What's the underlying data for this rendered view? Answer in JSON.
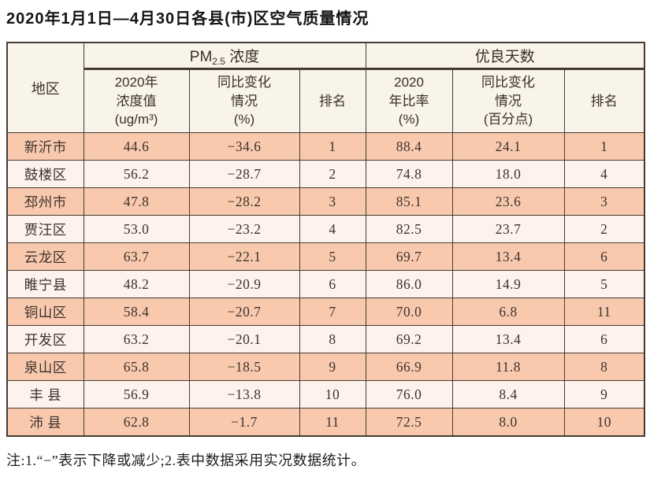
{
  "title": "2020年1月1日—4月30日各县(市)区空气质量情况",
  "note": "注:1.“−”表示下降或减少;2.表中数据采用实况数据统计。",
  "colors": {
    "row_odd_bg": "#f9c9ae",
    "row_even_bg": "#fdf2ec",
    "header_bg": "#f9f4ea",
    "border": "#453b33",
    "text": "#3c332d"
  },
  "table": {
    "group_headers": {
      "region": "地区",
      "pm25_pm": "PM",
      "pm25_sub": "2.5",
      "pm25_word": " 浓度",
      "good_days": "优良天数"
    },
    "sub_headers": {
      "pm25_value": "2020年\n浓度值\n(ug/m³)",
      "pm25_change": "同比变化\n情况\n(%)",
      "pm25_rank": "排名",
      "good_ratio": "2020\n年比率\n(%)",
      "good_change": "同比变化\n情况\n(百分点)",
      "good_rank": "排名"
    },
    "rows": [
      {
        "region": "新沂市",
        "pm25_value": "44.6",
        "pm25_change": "−34.6",
        "pm25_rank": "1",
        "good_ratio": "88.4",
        "good_change": "24.1",
        "good_rank": "1"
      },
      {
        "region": "鼓楼区",
        "pm25_value": "56.2",
        "pm25_change": "−28.7",
        "pm25_rank": "2",
        "good_ratio": "74.8",
        "good_change": "18.0",
        "good_rank": "4"
      },
      {
        "region": "邳州市",
        "pm25_value": "47.8",
        "pm25_change": "−28.2",
        "pm25_rank": "3",
        "good_ratio": "85.1",
        "good_change": "23.6",
        "good_rank": "3"
      },
      {
        "region": "贾汪区",
        "pm25_value": "53.0",
        "pm25_change": "−23.2",
        "pm25_rank": "4",
        "good_ratio": "82.5",
        "good_change": "23.7",
        "good_rank": "2"
      },
      {
        "region": "云龙区",
        "pm25_value": "63.7",
        "pm25_change": "−22.1",
        "pm25_rank": "5",
        "good_ratio": "69.7",
        "good_change": "13.4",
        "good_rank": "6"
      },
      {
        "region": "睢宁县",
        "pm25_value": "48.2",
        "pm25_change": "−20.9",
        "pm25_rank": "6",
        "good_ratio": "86.0",
        "good_change": "14.9",
        "good_rank": "5"
      },
      {
        "region": "铜山区",
        "pm25_value": "58.4",
        "pm25_change": "−20.7",
        "pm25_rank": "7",
        "good_ratio": "70.0",
        "good_change": "6.8",
        "good_rank": "11"
      },
      {
        "region": "开发区",
        "pm25_value": "63.2",
        "pm25_change": "−20.1",
        "pm25_rank": "8",
        "good_ratio": "69.2",
        "good_change": "13.4",
        "good_rank": "6"
      },
      {
        "region": "泉山区",
        "pm25_value": "65.8",
        "pm25_change": "−18.5",
        "pm25_rank": "9",
        "good_ratio": "66.9",
        "good_change": "11.8",
        "good_rank": "8"
      },
      {
        "region": "丰 县",
        "pm25_value": "56.9",
        "pm25_change": "−13.8",
        "pm25_rank": "10",
        "good_ratio": "76.0",
        "good_change": "8.4",
        "good_rank": "9"
      },
      {
        "region": "沛 县",
        "pm25_value": "62.8",
        "pm25_change": "−1.7",
        "pm25_rank": "11",
        "good_ratio": "72.5",
        "good_change": "8.0",
        "good_rank": "10"
      }
    ]
  },
  "chart_data": {
    "type": "table",
    "title": "2020年1月1日—4月30日各县(市)区空气质量情况",
    "column_groups": [
      "地区",
      "PM2.5浓度",
      "优良天数"
    ],
    "columns": [
      "地区",
      "PM2.5浓度 2020年浓度值(ug/m³)",
      "PM2.5浓度 同比变化情况(%)",
      "PM2.5浓度 排名",
      "优良天数 2020年比率(%)",
      "优良天数 同比变化情况(百分点)",
      "优良天数 排名"
    ],
    "rows": [
      [
        "新沂市",
        44.6,
        -34.6,
        1,
        88.4,
        24.1,
        1
      ],
      [
        "鼓楼区",
        56.2,
        -28.7,
        2,
        74.8,
        18.0,
        4
      ],
      [
        "邳州市",
        47.8,
        -28.2,
        3,
        85.1,
        23.6,
        3
      ],
      [
        "贾汪区",
        53.0,
        -23.2,
        4,
        82.5,
        23.7,
        2
      ],
      [
        "云龙区",
        63.7,
        -22.1,
        5,
        69.7,
        13.4,
        6
      ],
      [
        "睢宁县",
        48.2,
        -20.9,
        6,
        86.0,
        14.9,
        5
      ],
      [
        "铜山区",
        58.4,
        -20.7,
        7,
        70.0,
        6.8,
        11
      ],
      [
        "开发区",
        63.2,
        -20.1,
        8,
        69.2,
        13.4,
        6
      ],
      [
        "泉山区",
        65.8,
        -18.5,
        9,
        66.9,
        11.8,
        8
      ],
      [
        "丰县",
        56.9,
        -13.8,
        10,
        76.0,
        8.4,
        9
      ],
      [
        "沛县",
        62.8,
        -1.7,
        11,
        72.5,
        8.0,
        10
      ]
    ],
    "footnote": "注:1.“−”表示下降或减少;2.表中数据采用实况数据统计。"
  }
}
